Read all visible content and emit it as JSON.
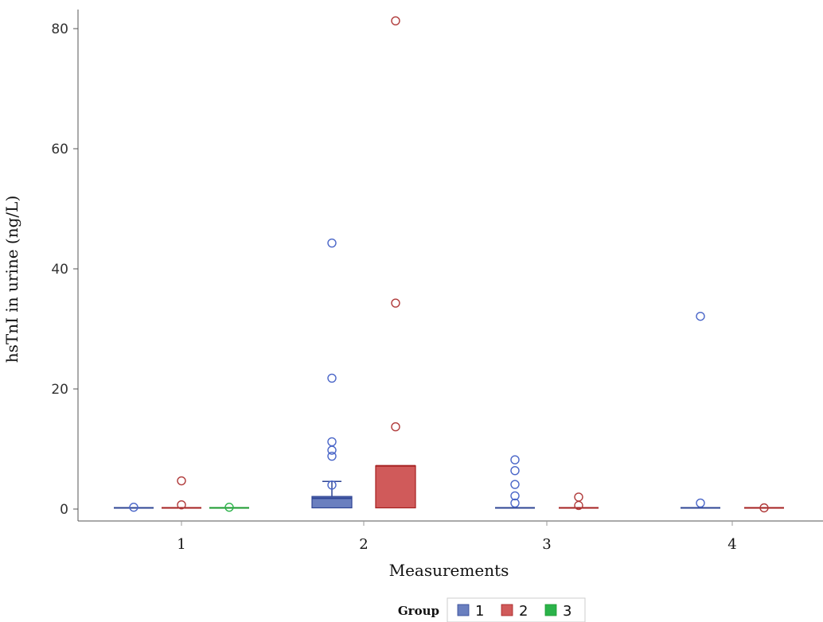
{
  "chart_data": {
    "type": "box",
    "title": "",
    "xlabel": "Measurements",
    "ylabel": "hsTnI in urine (ng/L)",
    "ylim": [
      -2,
      83
    ],
    "yticks": [
      0,
      20,
      40,
      60,
      80
    ],
    "categories": [
      "1",
      "2",
      "3",
      "4"
    ],
    "legend": {
      "title": "Group",
      "placement": "bottom"
    },
    "series": [
      {
        "name": "1",
        "color": "#6a7fbf",
        "line_color": "#2e4494",
        "outlier_color": "#4a66c8",
        "boxes": [
          {
            "category": "1",
            "q1": 0.2,
            "median": 0.2,
            "q3": 0.2,
            "whisker_low": 0.2,
            "whisker_high": 0.2,
            "outliers": [
              0.3
            ]
          },
          {
            "category": "2",
            "q1": 0.2,
            "median": 1.8,
            "q3": 2.1,
            "whisker_low": 0.2,
            "whisker_high": 4.6,
            "outliers": [
              4.0,
              8.8,
              9.8,
              11.2,
              21.8,
              44.3
            ]
          },
          {
            "category": "3",
            "q1": 0.2,
            "median": 0.2,
            "q3": 0.2,
            "whisker_low": 0.2,
            "whisker_high": 0.2,
            "outliers": [
              1.0,
              2.2,
              4.1,
              6.4,
              8.2
            ]
          },
          {
            "category": "4",
            "q1": 0.2,
            "median": 0.2,
            "q3": 0.2,
            "whisker_low": 0.2,
            "whisker_high": 0.2,
            "outliers": [
              1.0,
              32.1
            ]
          }
        ]
      },
      {
        "name": "2",
        "color": "#d05a5a",
        "line_color": "#a52020",
        "outlier_color": "#b03a3a",
        "boxes": [
          {
            "category": "1",
            "q1": 0.2,
            "median": 0.2,
            "q3": 0.2,
            "whisker_low": 0.2,
            "whisker_high": 0.2,
            "outliers": [
              0.7,
              4.7
            ]
          },
          {
            "category": "2",
            "q1": 0.2,
            "median": 7.2,
            "q3": 7.2,
            "whisker_low": 0.2,
            "whisker_high": 7.2,
            "outliers": [
              13.7,
              34.3,
              81.3
            ]
          },
          {
            "category": "3",
            "q1": 0.2,
            "median": 0.2,
            "q3": 0.2,
            "whisker_low": 0.2,
            "whisker_high": 0.2,
            "outliers": [
              0.6,
              2.0
            ]
          },
          {
            "category": "4",
            "q1": 0.2,
            "median": 0.2,
            "q3": 0.2,
            "whisker_low": 0.2,
            "whisker_high": 0.2,
            "outliers": [
              0.2
            ]
          }
        ]
      },
      {
        "name": "3",
        "color": "#2bb34a",
        "line_color": "#1a9a2e",
        "outlier_color": "#2bb34a",
        "boxes": [
          {
            "category": "1",
            "q1": 0.2,
            "median": 0.2,
            "q3": 0.2,
            "whisker_low": 0.2,
            "whisker_high": 0.2,
            "outliers": [
              0.3
            ]
          }
        ]
      }
    ]
  }
}
